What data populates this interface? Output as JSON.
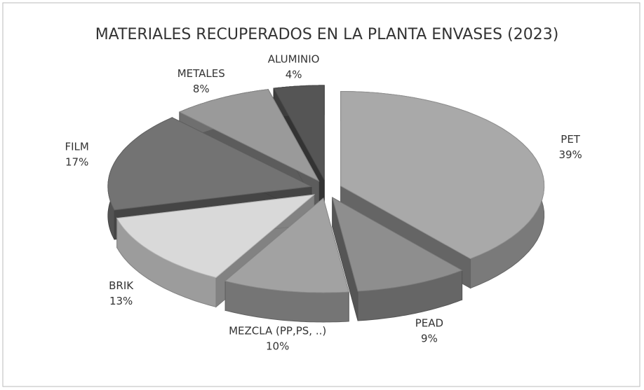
{
  "chart_data": {
    "type": "pie",
    "title": "MATERIALES RECUPERADOS EN LA PLANTA ENVASES (2023)",
    "categories": [
      "PET",
      "PEAD",
      "MEZCLA (PP,PS, ..)",
      "BRIK",
      "FILM",
      "METALES",
      "ALUMINIO"
    ],
    "values": [
      39,
      9,
      10,
      13,
      17,
      8,
      4
    ],
    "value_labels": [
      "39%",
      "9%",
      "10%",
      "13%",
      "17%",
      "8%",
      "4%"
    ],
    "colors": [
      "#a9a9a9",
      "#8e8e8e",
      "#a2a2a2",
      "#d9d9d9",
      "#737373",
      "#9a9a9a",
      "#555555"
    ]
  }
}
